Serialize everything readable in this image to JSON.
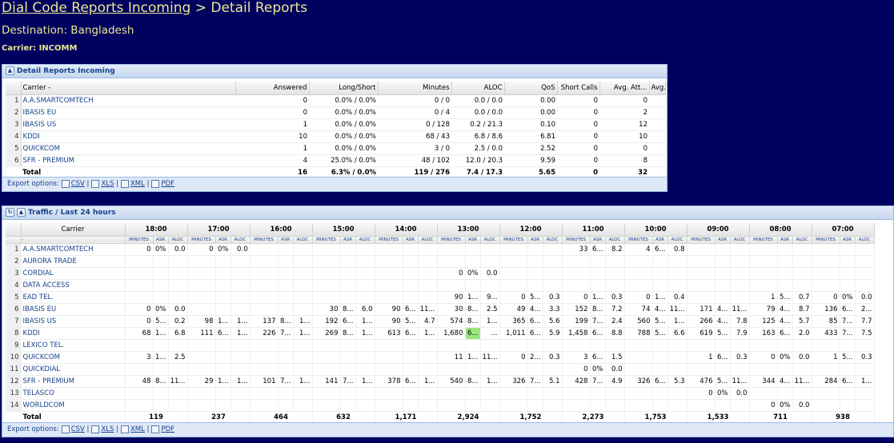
{
  "header": {
    "link": "Dial Code Reports Incoming",
    "separator": " > ",
    "current": "Detail Reports",
    "destination": "Destination: Bangladesh",
    "carrier": "Carrier: INCOMM"
  },
  "detail": {
    "title": "Detail Reports Incoming",
    "columns": [
      "Carrier -",
      "Answered",
      "Long/Short",
      "Minutes",
      "ALOC",
      "QoS",
      "Short Calls",
      "Avg. Att...",
      "Avg. An..."
    ],
    "rows": [
      [
        "1",
        "A.A.SMARTCOMTECH",
        "0",
        "0.0% / 0.0%",
        "0 / 0",
        "0.0 / 0.0",
        "0.00",
        "0",
        "0"
      ],
      [
        "2",
        "IBASIS EU",
        "0",
        "0.0% / 0.0%",
        "0 / 4",
        "0.0 / 0.0",
        "0.00",
        "0",
        "2"
      ],
      [
        "3",
        "IBASIS US",
        "1",
        "0.0% / 0.0%",
        "0 / 128",
        "0.2 / 21.3",
        "0.10",
        "0",
        "12"
      ],
      [
        "4",
        "KDDI",
        "10",
        "0.0% / 0.0%",
        "68 / 43",
        "6.8 / 8.6",
        "6.81",
        "0",
        "10"
      ],
      [
        "5",
        "QUICKCOM",
        "1",
        "0.0% / 0.0%",
        "3 / 0",
        "2.5 / 0.0",
        "2.52",
        "0",
        "0"
      ],
      [
        "6",
        "SFR - PREMIUM",
        "4",
        "25.0% / 0.0%",
        "48 / 102",
        "12.0 / 20.3",
        "9.59",
        "0",
        "8"
      ]
    ],
    "total": [
      "Total",
      "16",
      "6.3% / 0.0%",
      "119 / 276",
      "7.4 / 17.3",
      "5.65",
      "0",
      "32"
    ],
    "export_label": "Export options:",
    "exports": [
      "CSV",
      "XLS",
      "XML",
      "PDF"
    ]
  },
  "traffic": {
    "title": "Traffic / Last 24 hours",
    "carrier_header": "Carrier",
    "sort_marker": "-",
    "hours": [
      "18:00",
      "17:00",
      "16:00",
      "15:00",
      "14:00",
      "13:00",
      "12:00",
      "11:00",
      "10:00",
      "09:00",
      "08:00",
      "07:00"
    ],
    "sub_headers": [
      "MINUTES",
      "ASR",
      "ALOC"
    ],
    "rows": [
      {
        "n": "1",
        "name": "A.A.SMARTCOMTECH",
        "cells": [
          [
            "0",
            "0%",
            "0.0"
          ],
          [
            "0",
            "0%",
            "0.0"
          ],
          [
            "",
            "",
            ""
          ],
          [
            "",
            "",
            ""
          ],
          [
            "",
            "",
            ""
          ],
          [
            "",
            "",
            ""
          ],
          [
            "",
            "",
            ""
          ],
          [
            "33",
            "6...",
            "8.2"
          ],
          [
            "4",
            "6...",
            "0.8"
          ],
          [
            "",
            "",
            ""
          ],
          [
            "",
            "",
            ""
          ],
          [
            "",
            "",
            ""
          ]
        ]
      },
      {
        "n": "2",
        "name": "AURORA TRADE",
        "cells": [
          [
            "",
            "",
            ""
          ],
          [
            "",
            "",
            ""
          ],
          [
            "",
            "",
            ""
          ],
          [
            "",
            "",
            ""
          ],
          [
            "",
            "",
            ""
          ],
          [
            "",
            "",
            ""
          ],
          [
            "",
            "",
            ""
          ],
          [
            "",
            "",
            ""
          ],
          [
            "",
            "",
            ""
          ],
          [
            "",
            "",
            ""
          ],
          [
            "",
            "",
            ""
          ],
          [
            "",
            "",
            ""
          ]
        ]
      },
      {
        "n": "3",
        "name": "CORDIAL",
        "cells": [
          [
            "",
            "",
            ""
          ],
          [
            "",
            "",
            ""
          ],
          [
            "",
            "",
            ""
          ],
          [
            "",
            "",
            ""
          ],
          [
            "",
            "",
            ""
          ],
          [
            "0",
            "0%",
            "0.0"
          ],
          [
            "",
            "",
            ""
          ],
          [
            "",
            "",
            ""
          ],
          [
            "",
            "",
            ""
          ],
          [
            "",
            "",
            ""
          ],
          [
            "",
            "",
            ""
          ],
          [
            "",
            "",
            ""
          ]
        ]
      },
      {
        "n": "4",
        "name": "DATA ACCESS",
        "cells": [
          [
            "",
            "",
            ""
          ],
          [
            "",
            "",
            ""
          ],
          [
            "",
            "",
            ""
          ],
          [
            "",
            "",
            ""
          ],
          [
            "",
            "",
            ""
          ],
          [
            "",
            "",
            ""
          ],
          [
            "",
            "",
            ""
          ],
          [
            "",
            "",
            ""
          ],
          [
            "",
            "",
            ""
          ],
          [
            "",
            "",
            ""
          ],
          [
            "",
            "",
            ""
          ],
          [
            "",
            "",
            ""
          ]
        ]
      },
      {
        "n": "5",
        "name": "EAD TEL.",
        "cells": [
          [
            "",
            "",
            ""
          ],
          [
            "",
            "",
            ""
          ],
          [
            "",
            "",
            ""
          ],
          [
            "",
            "",
            ""
          ],
          [
            "",
            "",
            ""
          ],
          [
            "90",
            "1...",
            "9..."
          ],
          [
            "0",
            "5...",
            "0.3"
          ],
          [
            "0",
            "1...",
            "0.3"
          ],
          [
            "0",
            "1...",
            "0.4"
          ],
          [
            "",
            "",
            ""
          ],
          [
            "1",
            "5...",
            "0.7"
          ],
          [
            "0",
            "0%",
            "0.0"
          ]
        ]
      },
      {
        "n": "6",
        "name": "IBASIS EU",
        "cells": [
          [
            "0",
            "0%",
            "0.0"
          ],
          [
            "",
            "",
            ""
          ],
          [
            "",
            "",
            ""
          ],
          [
            "30",
            "8...",
            "6.0"
          ],
          [
            "90",
            "6...",
            "11..."
          ],
          [
            "30",
            "8...",
            "2.5"
          ],
          [
            "49",
            "4...",
            "3.3"
          ],
          [
            "152",
            "8...",
            "7.2"
          ],
          [
            "74",
            "4...",
            "11..."
          ],
          [
            "171",
            "4...",
            "11..."
          ],
          [
            "79",
            "4...",
            "8.7"
          ],
          [
            "136",
            "6...",
            "2..."
          ]
        ]
      },
      {
        "n": "7",
        "name": "IBASIS US",
        "cells": [
          [
            "0",
            "5...",
            "0.2"
          ],
          [
            "98",
            "1...",
            "1..."
          ],
          [
            "137",
            "8...",
            "1..."
          ],
          [
            "192",
            "6...",
            "1..."
          ],
          [
            "90",
            "5...",
            "4.7"
          ],
          [
            "574",
            "8...",
            "1..."
          ],
          [
            "365",
            "6...",
            "5.6"
          ],
          [
            "199",
            "7...",
            "2.4"
          ],
          [
            "560",
            "5...",
            "1..."
          ],
          [
            "266",
            "4...",
            "7.8"
          ],
          [
            "125",
            "4...",
            "5.7"
          ],
          [
            "85",
            "7...",
            "7.7"
          ]
        ]
      },
      {
        "n": "8",
        "name": "KDDI",
        "cells": [
          [
            "68",
            "1...",
            "6.8"
          ],
          [
            "111",
            "6...",
            "1..."
          ],
          [
            "226",
            "7...",
            "1..."
          ],
          [
            "269",
            "8...",
            "1..."
          ],
          [
            "613",
            "6...",
            "1..."
          ],
          [
            "1,680",
            "6...",
            "..."
          ],
          [
            "1,011",
            "6...",
            "5.9"
          ],
          [
            "1,458",
            "6...",
            "8.8"
          ],
          [
            "788",
            "5...",
            "6.6"
          ],
          [
            "619",
            "5...",
            "7.9"
          ],
          [
            "163",
            "6...",
            "2.0"
          ],
          [
            "433",
            "7...",
            "7.5"
          ]
        ]
      },
      {
        "n": "9",
        "name": "LEXICO TEL.",
        "cells": [
          [
            "",
            "",
            ""
          ],
          [
            "",
            "",
            ""
          ],
          [
            "",
            "",
            ""
          ],
          [
            "",
            "",
            ""
          ],
          [
            "",
            "",
            ""
          ],
          [
            "",
            "",
            ""
          ],
          [
            "",
            "",
            ""
          ],
          [
            "",
            "",
            ""
          ],
          [
            "",
            "",
            ""
          ],
          [
            "",
            "",
            ""
          ],
          [
            "",
            "",
            ""
          ],
          [
            "",
            "",
            ""
          ]
        ]
      },
      {
        "n": "10",
        "name": "QUICKCOM",
        "cells": [
          [
            "3",
            "1...",
            "2.5"
          ],
          [
            "",
            "",
            ""
          ],
          [
            "",
            "",
            ""
          ],
          [
            "",
            "",
            ""
          ],
          [
            "",
            "",
            ""
          ],
          [
            "11",
            "1...",
            "11..."
          ],
          [
            "0",
            "2...",
            "0.3"
          ],
          [
            "3",
            "6...",
            "1.5"
          ],
          [
            "",
            "",
            ""
          ],
          [
            "1",
            "6...",
            "0.3"
          ],
          [
            "0",
            "0%",
            "0.0"
          ],
          [
            "1",
            "5...",
            "0.3"
          ]
        ]
      },
      {
        "n": "11",
        "name": "QUICKDIAL",
        "cells": [
          [
            "",
            "",
            ""
          ],
          [
            "",
            "",
            ""
          ],
          [
            "",
            "",
            ""
          ],
          [
            "",
            "",
            ""
          ],
          [
            "",
            "",
            ""
          ],
          [
            "",
            "",
            ""
          ],
          [
            "",
            "",
            ""
          ],
          [
            "0",
            "0%",
            "0.0"
          ],
          [
            "",
            "",
            ""
          ],
          [
            "",
            "",
            ""
          ],
          [
            "",
            "",
            ""
          ],
          [
            "",
            "",
            ""
          ]
        ]
      },
      {
        "n": "12",
        "name": "SFR - PREMIUM",
        "cells": [
          [
            "48",
            "8...",
            "11..."
          ],
          [
            "29",
            "1...",
            "1..."
          ],
          [
            "101",
            "7...",
            "1..."
          ],
          [
            "141",
            "7...",
            "1..."
          ],
          [
            "378",
            "6...",
            "1..."
          ],
          [
            "540",
            "8...",
            "1..."
          ],
          [
            "326",
            "7...",
            "5.1"
          ],
          [
            "428",
            "7...",
            "4.9"
          ],
          [
            "326",
            "6...",
            "5.3"
          ],
          [
            "476",
            "5...",
            "11..."
          ],
          [
            "344",
            "4...",
            "11..."
          ],
          [
            "284",
            "6...",
            "1..."
          ]
        ]
      },
      {
        "n": "13",
        "name": "TELASCO",
        "cells": [
          [
            "",
            "",
            ""
          ],
          [
            "",
            "",
            ""
          ],
          [
            "",
            "",
            ""
          ],
          [
            "",
            "",
            ""
          ],
          [
            "",
            "",
            ""
          ],
          [
            "",
            "",
            ""
          ],
          [
            "",
            "",
            ""
          ],
          [
            "",
            "",
            ""
          ],
          [
            "",
            "",
            ""
          ],
          [
            "0",
            "0%",
            "0.0"
          ],
          [
            "",
            "",
            ""
          ],
          [
            "",
            "",
            ""
          ]
        ]
      },
      {
        "n": "14",
        "name": "WORLDCOM",
        "cells": [
          [
            "",
            "",
            ""
          ],
          [
            "",
            "",
            ""
          ],
          [
            "",
            "",
            ""
          ],
          [
            "",
            "",
            ""
          ],
          [
            "",
            "",
            ""
          ],
          [
            "",
            "",
            ""
          ],
          [
            "",
            "",
            ""
          ],
          [
            "",
            "",
            ""
          ],
          [
            "",
            "",
            ""
          ],
          [
            "",
            "",
            ""
          ],
          [
            "0",
            "0%",
            "0.0"
          ],
          [
            "",
            "",
            ""
          ]
        ]
      }
    ],
    "total_label": "Total",
    "totals": [
      "119",
      "237",
      "464",
      "632",
      "1,171",
      "2,924",
      "1,752",
      "2,273",
      "1,753",
      "1,533",
      "711",
      "938"
    ],
    "export_label": "Export options:",
    "exports": [
      "CSV",
      "XLS",
      "XML",
      "PDF"
    ]
  }
}
